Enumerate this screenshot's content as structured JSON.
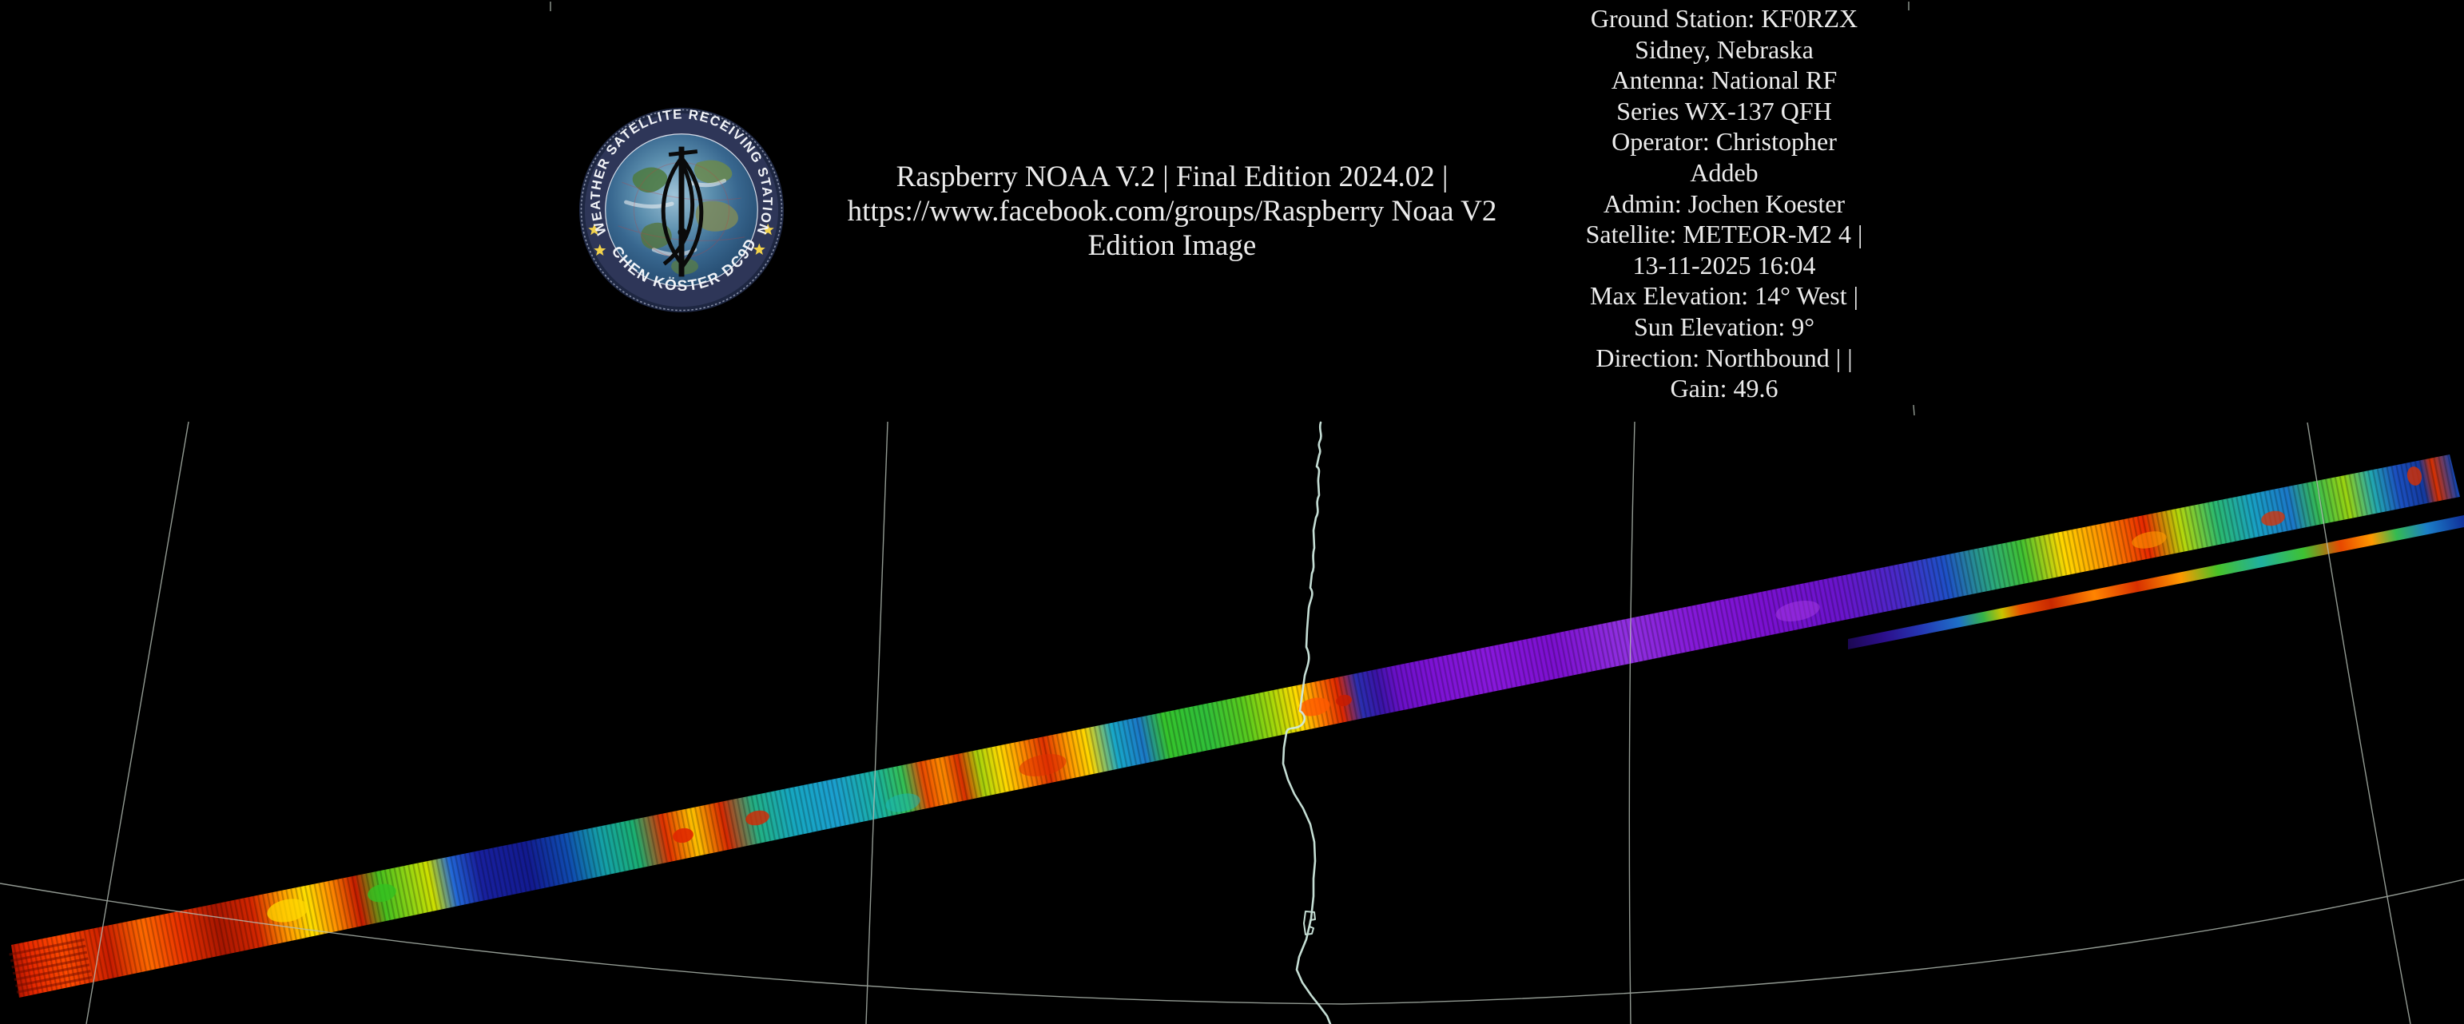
{
  "header": {
    "line1": "Raspberry NOAA V.2 | Final Edition 2024.02 |",
    "line2": "https://www.facebook.com/groups/Raspberry Noaa V2",
    "line3": "Edition Image"
  },
  "logo": {
    "ring_top": "WEATHER SATELLITE RECEIVING STATION",
    "ring_bottom": "JOCHEN KÖSTER DC9DD"
  },
  "station_info": {
    "lines": [
      "Ground Station: KF0RZX",
      "Sidney, Nebraska",
      "Antenna: National RF",
      "Series WX-137 QFH",
      "Operator: Christopher",
      "Addeb",
      "Admin: Jochen Koester",
      "Satellite: METEOR-M2 4 |",
      "13-11-2025 16:04",
      "Max Elevation: 14° West |",
      "Sun Elevation: 9°",
      "Direction: Northbound | |",
      "Gain: 49.6"
    ]
  },
  "map": {
    "background": "#000000",
    "graticule_color": "#b7c0b7",
    "coastline_color": "#cfe9df",
    "swath_palette": [
      "#e82800",
      "#ff8c00",
      "#ffd800",
      "#35c42c",
      "#18a8c8",
      "#121a90",
      "#7c12d4",
      "#9030e0",
      "#1b50c0"
    ]
  }
}
